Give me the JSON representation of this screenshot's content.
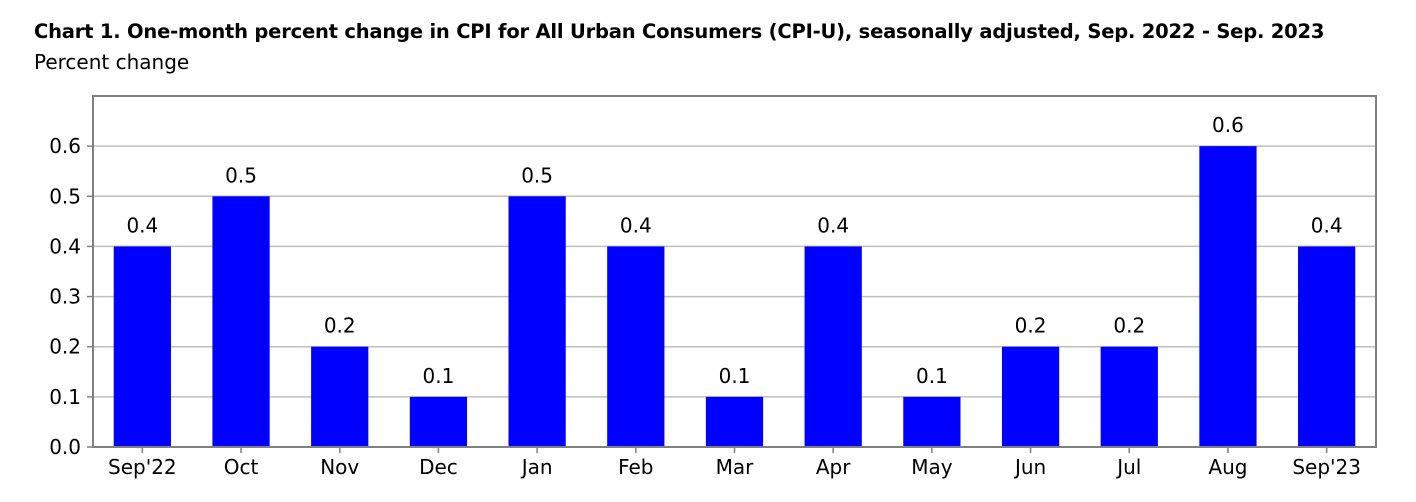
{
  "chart_data": {
    "type": "bar",
    "title": "Chart 1. One-month percent change in CPI for All Urban Consumers (CPI-U), seasonally adjusted, Sep. 2022 - Sep. 2023",
    "ylabel": "Percent change",
    "xlabel": "",
    "categories": [
      "Sep'22",
      "Oct",
      "Nov",
      "Dec",
      "Jan",
      "Feb",
      "Mar",
      "Apr",
      "May",
      "Jun",
      "Jul",
      "Aug",
      "Sep'23"
    ],
    "values": [
      0.4,
      0.5,
      0.2,
      0.1,
      0.5,
      0.4,
      0.1,
      0.4,
      0.1,
      0.2,
      0.2,
      0.6,
      0.4
    ],
    "data_labels": [
      "0.4",
      "0.5",
      "0.2",
      "0.1",
      "0.5",
      "0.4",
      "0.1",
      "0.4",
      "0.1",
      "0.2",
      "0.2",
      "0.6",
      "0.4"
    ],
    "yticks": [
      "0.0",
      "0.1",
      "0.2",
      "0.3",
      "0.4",
      "0.5",
      "0.6"
    ],
    "ylim": [
      0,
      0.7
    ],
    "grid": true,
    "legend": "none",
    "colors": {
      "bar": "#0000ff",
      "grid": "#bfbfbf",
      "frame": "#808080"
    }
  }
}
